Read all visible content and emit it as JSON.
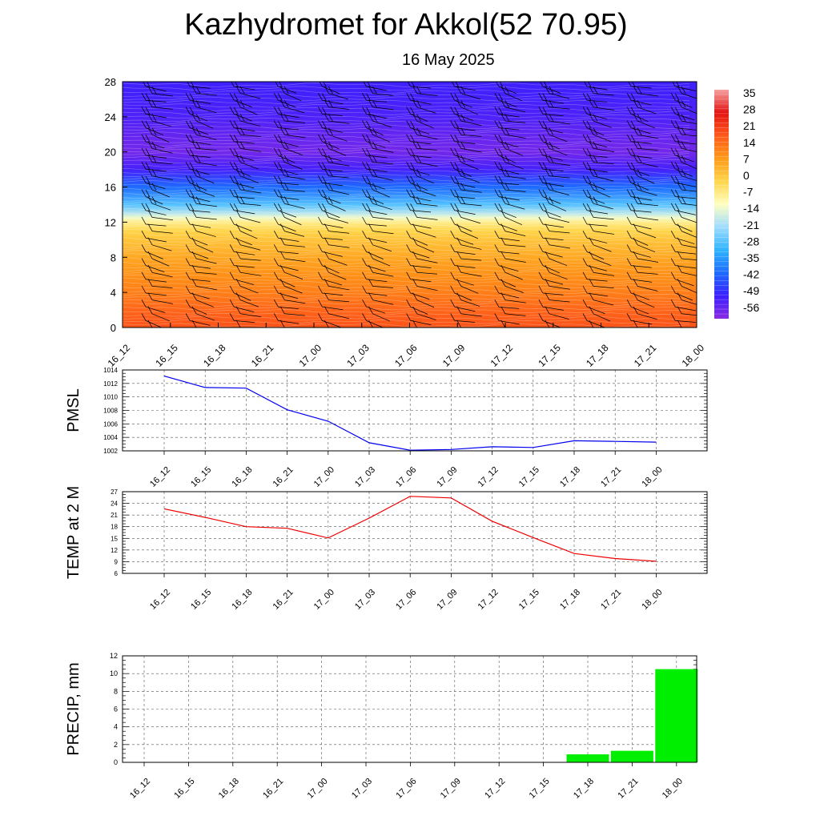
{
  "page": {
    "title": "Kazhydromet for Akkol(52 70.95)",
    "subtitle": "16 May 2025"
  },
  "time_labels": [
    "16_12",
    "16_15",
    "16_18",
    "16_21",
    "17_00",
    "17_03",
    "17_06",
    "17_09",
    "17_12",
    "17_15",
    "17_18",
    "17_21",
    "18_00"
  ],
  "chart_data": [
    {
      "type": "heatmap",
      "title": "",
      "ylabel": "",
      "ylim": [
        0,
        28
      ],
      "yticks": [
        0,
        4,
        8,
        12,
        16,
        20,
        24,
        28
      ],
      "x": [
        "16_12",
        "16_15",
        "16_18",
        "16_21",
        "17_00",
        "17_03",
        "17_06",
        "17_09",
        "17_12",
        "17_15",
        "17_18",
        "17_21",
        "18_00"
      ],
      "colorbar_labels": [
        "35",
        "28",
        "21",
        "14",
        "7",
        "0",
        "-7",
        "-14",
        "-21",
        "-28",
        "-35",
        "-42",
        "-49",
        "-56"
      ],
      "colorbar_range": [
        -63,
        42
      ],
      "profile_levels": [
        0,
        2,
        4,
        6,
        8,
        10,
        11,
        12,
        12.5,
        13,
        14,
        16,
        18,
        20,
        22,
        24,
        26,
        28
      ],
      "profile_values": [
        22,
        19,
        15,
        12,
        8,
        3,
        0,
        -6,
        -12,
        -18,
        -28,
        -42,
        -54,
        -60,
        -58,
        -55,
        -54,
        -53
      ],
      "wind_barbs": true,
      "colors": {
        "scale": [
          "#8a2be2",
          "#3a1fff",
          "#1e6bff",
          "#2fb4ff",
          "#9edcff",
          "#ffffc0",
          "#ffd54a",
          "#ff9a18",
          "#ff5a1a",
          "#e31313",
          "#f5a0a0"
        ]
      }
    },
    {
      "type": "line",
      "ylabel": "PMSL",
      "ylim": [
        1002,
        1014
      ],
      "yticks": [
        1002,
        1004,
        1006,
        1008,
        1010,
        1012,
        1014
      ],
      "x": [
        "16_12",
        "16_15",
        "16_18",
        "16_21",
        "17_00",
        "17_03",
        "17_06",
        "17_09",
        "17_12",
        "17_15",
        "17_18",
        "17_21",
        "18_00"
      ],
      "values": [
        1013.1,
        1011.4,
        1011.3,
        1008.1,
        1006.4,
        1003.2,
        1002.1,
        1002.2,
        1002.6,
        1002.5,
        1003.5,
        1003.4,
        1003.3
      ],
      "grid": true,
      "color": "#0000ee"
    },
    {
      "type": "line",
      "ylabel": "TEMP at 2 M",
      "ylim": [
        6,
        27
      ],
      "yticks": [
        6,
        9,
        12,
        15,
        18,
        21,
        24,
        27
      ],
      "x": [
        "16_12",
        "16_15",
        "16_18",
        "16_21",
        "17_00",
        "17_03",
        "17_06",
        "17_09",
        "17_12",
        "17_15",
        "17_18",
        "17_21",
        "18_00"
      ],
      "values": [
        22.6,
        20.4,
        18.0,
        17.6,
        15.1,
        20.2,
        25.8,
        25.4,
        19.4,
        15.2,
        11.1,
        9.8,
        9.1
      ],
      "grid": true,
      "color": "#ee0000"
    },
    {
      "type": "bar",
      "ylabel": "PRECIP, mm",
      "ylim": [
        0,
        12
      ],
      "yticks": [
        0,
        2,
        4,
        6,
        8,
        10,
        12
      ],
      "categories": [
        "16_12",
        "16_15",
        "16_18",
        "16_21",
        "17_00",
        "17_03",
        "17_06",
        "17_09",
        "17_12",
        "17_15",
        "17_18",
        "17_21",
        "18_00"
      ],
      "values": [
        0,
        0,
        0,
        0,
        0,
        0,
        0,
        0,
        0,
        0,
        0.9,
        1.3,
        10.5
      ],
      "grid": true,
      "color": "#00ee00"
    }
  ]
}
